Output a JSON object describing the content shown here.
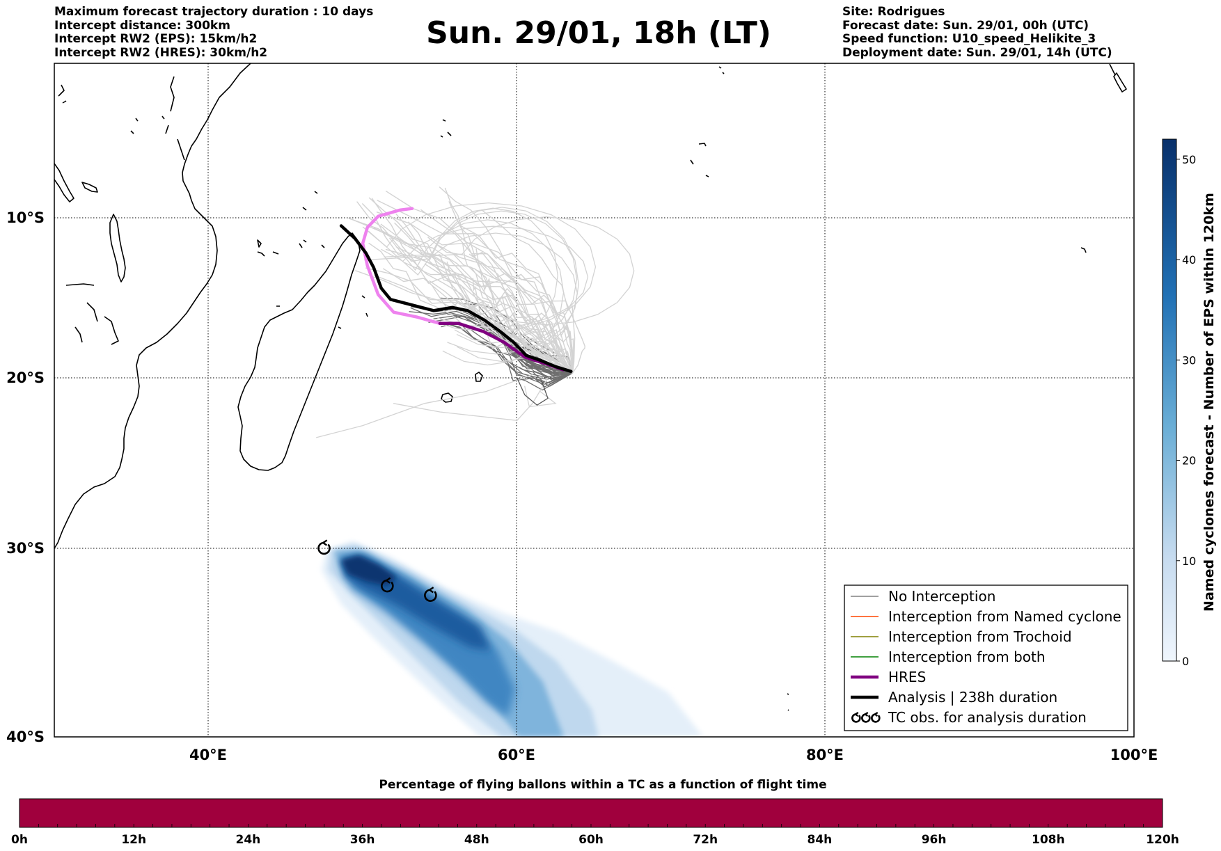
{
  "header": {
    "left_lines": [
      "Maximum forecast trajectory duration : 10 days",
      "Intercept distance: 300km",
      "Intercept RW2 (EPS):  15km/h2",
      "Intercept RW2 (HRES): 30km/h2"
    ],
    "title": "Sun. 29/01, 18h (LT)",
    "right_lines": [
      "Site: Rodrigues",
      "Forecast date: Sun. 29/01, 00h (UTC)",
      "Speed function: U10_speed_Helikite_3",
      "Deployment date: Sun. 29/01, 14h (UTC)"
    ]
  },
  "map": {
    "lon_range": [
      30,
      100
    ],
    "lat_range": [
      -40,
      0
    ],
    "lon_ticks": [
      {
        "value": 40,
        "label": "40°E"
      },
      {
        "value": 60,
        "label": "60°E"
      },
      {
        "value": 80,
        "label": "80°E"
      },
      {
        "value": 100,
        "label": "100°E"
      }
    ],
    "lat_ticks": [
      {
        "value": -10,
        "label": "10°S"
      },
      {
        "value": -20,
        "label": "20°S"
      },
      {
        "value": -30,
        "label": "30°S"
      },
      {
        "value": -40,
        "label": "40°S"
      }
    ],
    "colors": {
      "no_interception": "#808080",
      "named_cyclone": "#ff4500",
      "trochoid": "#808000",
      "both": "#008000",
      "hres": "#800080",
      "hres_early": "#ee82ee",
      "analysis": "#000000",
      "eps_light": "#d3d3d3",
      "eps_dark": "#6e6e6e"
    },
    "analysis_track": [
      [
        48.6,
        -10.5
      ],
      [
        49.5,
        -11.3
      ],
      [
        50.2,
        -12.2
      ],
      [
        50.7,
        -13.1
      ],
      [
        51.2,
        -14.4
      ],
      [
        51.8,
        -15.1
      ],
      [
        53.0,
        -15.4
      ],
      [
        54.6,
        -15.8
      ],
      [
        55.8,
        -15.6
      ],
      [
        56.8,
        -15.8
      ],
      [
        57.9,
        -16.4
      ],
      [
        58.9,
        -17.1
      ],
      [
        59.8,
        -17.8
      ],
      [
        60.6,
        -18.6
      ],
      [
        61.5,
        -18.9
      ],
      [
        62.5,
        -19.3
      ],
      [
        63.5,
        -19.6
      ]
    ],
    "hres_track": [
      [
        53.2,
        -9.4
      ],
      [
        52.4,
        -9.5
      ],
      [
        51.0,
        -9.9
      ],
      [
        50.3,
        -10.6
      ],
      [
        50.0,
        -11.6
      ],
      [
        50.3,
        -13.0
      ],
      [
        51.0,
        -14.8
      ],
      [
        52.0,
        -15.9
      ],
      [
        53.5,
        -16.2
      ],
      [
        55.0,
        -16.6
      ],
      [
        56.2,
        -16.6
      ],
      [
        57.8,
        -17.1
      ],
      [
        59.2,
        -17.8
      ],
      [
        60.5,
        -18.7
      ],
      [
        61.8,
        -19.1
      ],
      [
        63.0,
        -19.5
      ]
    ],
    "hres_magenta_until_index": 9,
    "tc_obs": [
      [
        47.5,
        -30.0
      ],
      [
        51.6,
        -32.0
      ],
      [
        54.4,
        -32.5
      ]
    ],
    "density_label_colorbar": "Named cyclones forecast - Number of EPS within 120km",
    "colorbar_ticks": [
      0,
      10,
      20,
      30,
      40,
      50
    ],
    "colorbar_max": 52
  },
  "legend": {
    "items": [
      {
        "label": "No Interception",
        "style": "thin",
        "color": "#808080"
      },
      {
        "label": "Interception from Named cyclone",
        "style": "thin",
        "color": "#ff4500"
      },
      {
        "label": "Interception from Trochoid",
        "style": "thin",
        "color": "#808000"
      },
      {
        "label": "Interception from both",
        "style": "thin",
        "color": "#008000"
      },
      {
        "label": "HRES",
        "style": "thick",
        "color": "#800080"
      },
      {
        "label": "Analysis | 238h duration",
        "style": "thick",
        "color": "#000000"
      },
      {
        "label": "TC obs. for analysis duration",
        "style": "symbol",
        "color": "#000000"
      }
    ]
  },
  "bottom_bar": {
    "title": "Percentage of flying ballons within a TC as a function of flight time",
    "color": "#a0003d",
    "ticks": [
      "0h",
      "12h",
      "24h",
      "36h",
      "48h",
      "60h",
      "72h",
      "84h",
      "96h",
      "108h",
      "120h"
    ]
  }
}
